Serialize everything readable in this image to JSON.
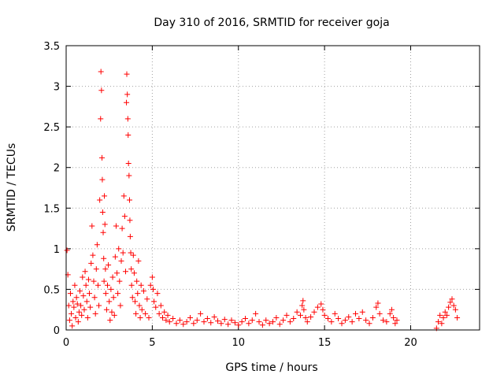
{
  "chart_data": {
    "type": "scatter",
    "title": "Day 310 of 2016, SRMTID for receiver goja",
    "xlabel": "GPS time / hours",
    "ylabel": "SRMTID / TECUs",
    "xlim": [
      0,
      24
    ],
    "ylim": [
      0,
      3.5
    ],
    "x_ticks": [
      "0",
      "5",
      "10",
      "15",
      "20"
    ],
    "y_ticks": [
      "0",
      "0.5",
      "1",
      "1.5",
      "2",
      "2.5",
      "3",
      "3.5"
    ],
    "grid": true,
    "marker": "+",
    "color": "#ff0000",
    "series": [
      {
        "name": "SRMTID",
        "points": [
          [
            0.05,
            0.98
          ],
          [
            0.1,
            0.68
          ],
          [
            0.15,
            0.3
          ],
          [
            0.2,
            0.12
          ],
          [
            0.25,
            0.45
          ],
          [
            0.3,
            0.2
          ],
          [
            0.35,
            0.05
          ],
          [
            0.4,
            0.35
          ],
          [
            0.45,
            0.28
          ],
          [
            0.5,
            0.55
          ],
          [
            0.55,
            0.15
          ],
          [
            0.6,
            0.4
          ],
          [
            0.65,
            0.32
          ],
          [
            0.7,
            0.1
          ],
          [
            0.75,
            0.22
          ],
          [
            0.8,
            0.48
          ],
          [
            0.85,
            0.3
          ],
          [
            0.9,
            0.18
          ],
          [
            0.95,
            0.65
          ],
          [
            1.0,
            0.42
          ],
          [
            1.05,
            0.25
          ],
          [
            1.1,
            0.72
          ],
          [
            1.15,
            0.55
          ],
          [
            1.2,
            0.35
          ],
          [
            1.25,
            0.15
          ],
          [
            1.3,
            0.62
          ],
          [
            1.35,
            0.45
          ],
          [
            1.4,
            0.28
          ],
          [
            1.45,
            0.82
          ],
          [
            1.5,
            1.28
          ],
          [
            1.55,
            0.92
          ],
          [
            1.6,
            0.6
          ],
          [
            1.65,
            0.4
          ],
          [
            1.7,
            0.2
          ],
          [
            1.75,
            0.75
          ],
          [
            1.8,
            1.05
          ],
          [
            1.85,
            0.55
          ],
          [
            1.9,
            0.3
          ],
          [
            1.95,
            1.6
          ],
          [
            2.0,
            2.6
          ],
          [
            2.02,
            3.18
          ],
          [
            2.05,
            2.95
          ],
          [
            2.08,
            2.12
          ],
          [
            2.1,
            1.85
          ],
          [
            2.12,
            1.45
          ],
          [
            2.15,
            1.2
          ],
          [
            2.18,
            0.88
          ],
          [
            2.2,
            0.6
          ],
          [
            2.22,
            1.65
          ],
          [
            2.25,
            1.3
          ],
          [
            2.28,
            0.75
          ],
          [
            2.3,
            0.45
          ],
          [
            2.35,
            0.25
          ],
          [
            2.4,
            0.55
          ],
          [
            2.45,
            0.8
          ],
          [
            2.5,
            0.35
          ],
          [
            2.55,
            0.12
          ],
          [
            2.6,
            0.5
          ],
          [
            2.65,
            0.22
          ],
          [
            2.7,
            0.65
          ],
          [
            2.75,
            0.4
          ],
          [
            2.8,
            0.18
          ],
          [
            2.85,
            0.9
          ],
          [
            2.9,
            1.28
          ],
          [
            2.95,
            0.7
          ],
          [
            3.0,
            0.45
          ],
          [
            3.05,
            1.0
          ],
          [
            3.1,
            0.6
          ],
          [
            3.15,
            0.3
          ],
          [
            3.2,
            0.85
          ],
          [
            3.25,
            1.25
          ],
          [
            3.3,
            0.95
          ],
          [
            3.35,
            1.65
          ],
          [
            3.4,
            1.4
          ],
          [
            3.45,
            0.72
          ],
          [
            3.5,
            2.8
          ],
          [
            3.52,
            3.15
          ],
          [
            3.55,
            2.9
          ],
          [
            3.58,
            2.6
          ],
          [
            3.6,
            2.4
          ],
          [
            3.62,
            2.05
          ],
          [
            3.65,
            1.9
          ],
          [
            3.68,
            1.6
          ],
          [
            3.7,
            1.35
          ],
          [
            3.72,
            1.15
          ],
          [
            3.75,
            0.95
          ],
          [
            3.78,
            0.75
          ],
          [
            3.8,
            0.55
          ],
          [
            3.85,
            0.4
          ],
          [
            3.9,
            0.92
          ],
          [
            3.95,
            0.7
          ],
          [
            4.0,
            0.35
          ],
          [
            4.05,
            0.2
          ],
          [
            4.1,
            0.6
          ],
          [
            4.15,
            0.45
          ],
          [
            4.2,
            0.85
          ],
          [
            4.25,
            0.3
          ],
          [
            4.3,
            0.15
          ],
          [
            4.35,
            0.55
          ],
          [
            4.4,
            0.25
          ],
          [
            4.5,
            0.48
          ],
          [
            4.6,
            0.2
          ],
          [
            4.7,
            0.38
          ],
          [
            4.8,
            0.15
          ],
          [
            4.9,
            0.55
          ],
          [
            5.0,
            0.65
          ],
          [
            5.05,
            0.5
          ],
          [
            5.1,
            0.35
          ],
          [
            5.2,
            0.28
          ],
          [
            5.3,
            0.45
          ],
          [
            5.4,
            0.2
          ],
          [
            5.5,
            0.3
          ],
          [
            5.6,
            0.15
          ],
          [
            5.7,
            0.22
          ],
          [
            5.8,
            0.12
          ],
          [
            5.9,
            0.18
          ],
          [
            6.0,
            0.1
          ],
          [
            6.2,
            0.14
          ],
          [
            6.4,
            0.08
          ],
          [
            6.6,
            0.12
          ],
          [
            6.8,
            0.07
          ],
          [
            7.0,
            0.1
          ],
          [
            7.2,
            0.15
          ],
          [
            7.4,
            0.08
          ],
          [
            7.6,
            0.12
          ],
          [
            7.8,
            0.2
          ],
          [
            8.0,
            0.1
          ],
          [
            8.2,
            0.14
          ],
          [
            8.4,
            0.09
          ],
          [
            8.6,
            0.16
          ],
          [
            8.8,
            0.11
          ],
          [
            9.0,
            0.08
          ],
          [
            9.2,
            0.13
          ],
          [
            9.4,
            0.07
          ],
          [
            9.6,
            0.12
          ],
          [
            9.8,
            0.09
          ],
          [
            10.0,
            0.06
          ],
          [
            10.2,
            0.1
          ],
          [
            10.4,
            0.14
          ],
          [
            10.6,
            0.08
          ],
          [
            10.8,
            0.12
          ],
          [
            11.0,
            0.2
          ],
          [
            11.2,
            0.1
          ],
          [
            11.4,
            0.06
          ],
          [
            11.6,
            0.12
          ],
          [
            11.8,
            0.08
          ],
          [
            12.0,
            0.1
          ],
          [
            12.2,
            0.15
          ],
          [
            12.4,
            0.07
          ],
          [
            12.6,
            0.12
          ],
          [
            12.8,
            0.18
          ],
          [
            13.0,
            0.1
          ],
          [
            13.2,
            0.14
          ],
          [
            13.4,
            0.22
          ],
          [
            13.6,
            0.18
          ],
          [
            13.7,
            0.3
          ],
          [
            13.75,
            0.36
          ],
          [
            13.8,
            0.25
          ],
          [
            13.9,
            0.15
          ],
          [
            14.0,
            0.1
          ],
          [
            14.2,
            0.16
          ],
          [
            14.4,
            0.22
          ],
          [
            14.6,
            0.28
          ],
          [
            14.8,
            0.32
          ],
          [
            14.9,
            0.25
          ],
          [
            15.0,
            0.18
          ],
          [
            15.2,
            0.14
          ],
          [
            15.4,
            0.1
          ],
          [
            15.6,
            0.2
          ],
          [
            15.8,
            0.14
          ],
          [
            16.0,
            0.08
          ],
          [
            16.2,
            0.12
          ],
          [
            16.4,
            0.16
          ],
          [
            16.6,
            0.1
          ],
          [
            16.8,
            0.2
          ],
          [
            17.0,
            0.14
          ],
          [
            17.2,
            0.22
          ],
          [
            17.4,
            0.12
          ],
          [
            17.6,
            0.08
          ],
          [
            17.8,
            0.15
          ],
          [
            18.0,
            0.28
          ],
          [
            18.1,
            0.33
          ],
          [
            18.2,
            0.2
          ],
          [
            18.4,
            0.12
          ],
          [
            18.6,
            0.1
          ],
          [
            18.8,
            0.2
          ],
          [
            18.9,
            0.25
          ],
          [
            19.0,
            0.15
          ],
          [
            19.1,
            0.08
          ],
          [
            19.2,
            0.12
          ],
          [
            21.5,
            0.02
          ],
          [
            21.6,
            0.1
          ],
          [
            21.7,
            0.18
          ],
          [
            21.8,
            0.08
          ],
          [
            21.9,
            0.15
          ],
          [
            22.0,
            0.22
          ],
          [
            22.1,
            0.18
          ],
          [
            22.2,
            0.28
          ],
          [
            22.3,
            0.34
          ],
          [
            22.4,
            0.38
          ],
          [
            22.5,
            0.3
          ],
          [
            22.6,
            0.25
          ],
          [
            22.7,
            0.15
          ]
        ]
      }
    ]
  }
}
